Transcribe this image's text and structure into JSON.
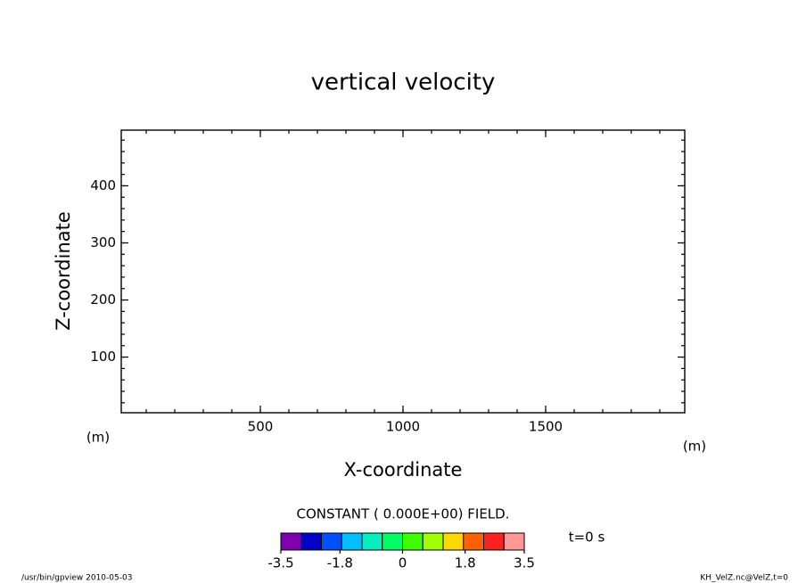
{
  "chart_data": {
    "type": "contour",
    "title": "vertical velocity",
    "x_label": "X-coordinate",
    "y_label": "Z-coordinate",
    "x_unit": "(m)",
    "y_unit": "(m)",
    "xlim": [
      12.5,
      1987.5
    ],
    "xticks": [
      500,
      1000,
      1500
    ],
    "x_minor_step": 100,
    "ylim": [
      2.5,
      497.5
    ],
    "yticks": [
      100,
      200,
      300,
      400
    ],
    "y_minor_step": 20,
    "annotation": "CONSTANT ( 0.000E+00) FIELD.",
    "time_label": "t=0 s",
    "colorbar": {
      "lim": [
        -3.5,
        3.5
      ],
      "ticks": [
        -3.5,
        -1.8,
        0,
        1.8,
        3.5
      ],
      "colors": [
        "#8000b0",
        "#0000c8",
        "#0050ff",
        "#00c0ff",
        "#00f0c0",
        "#00ff60",
        "#40ff00",
        "#a0ff00",
        "#ffd800",
        "#ff6000",
        "#ff2020",
        "#ff9898"
      ]
    },
    "footer_left": "/usr/bin/gpview  2010-05-03",
    "footer_right": "KH_VelZ.nc@VelZ,t=0"
  }
}
